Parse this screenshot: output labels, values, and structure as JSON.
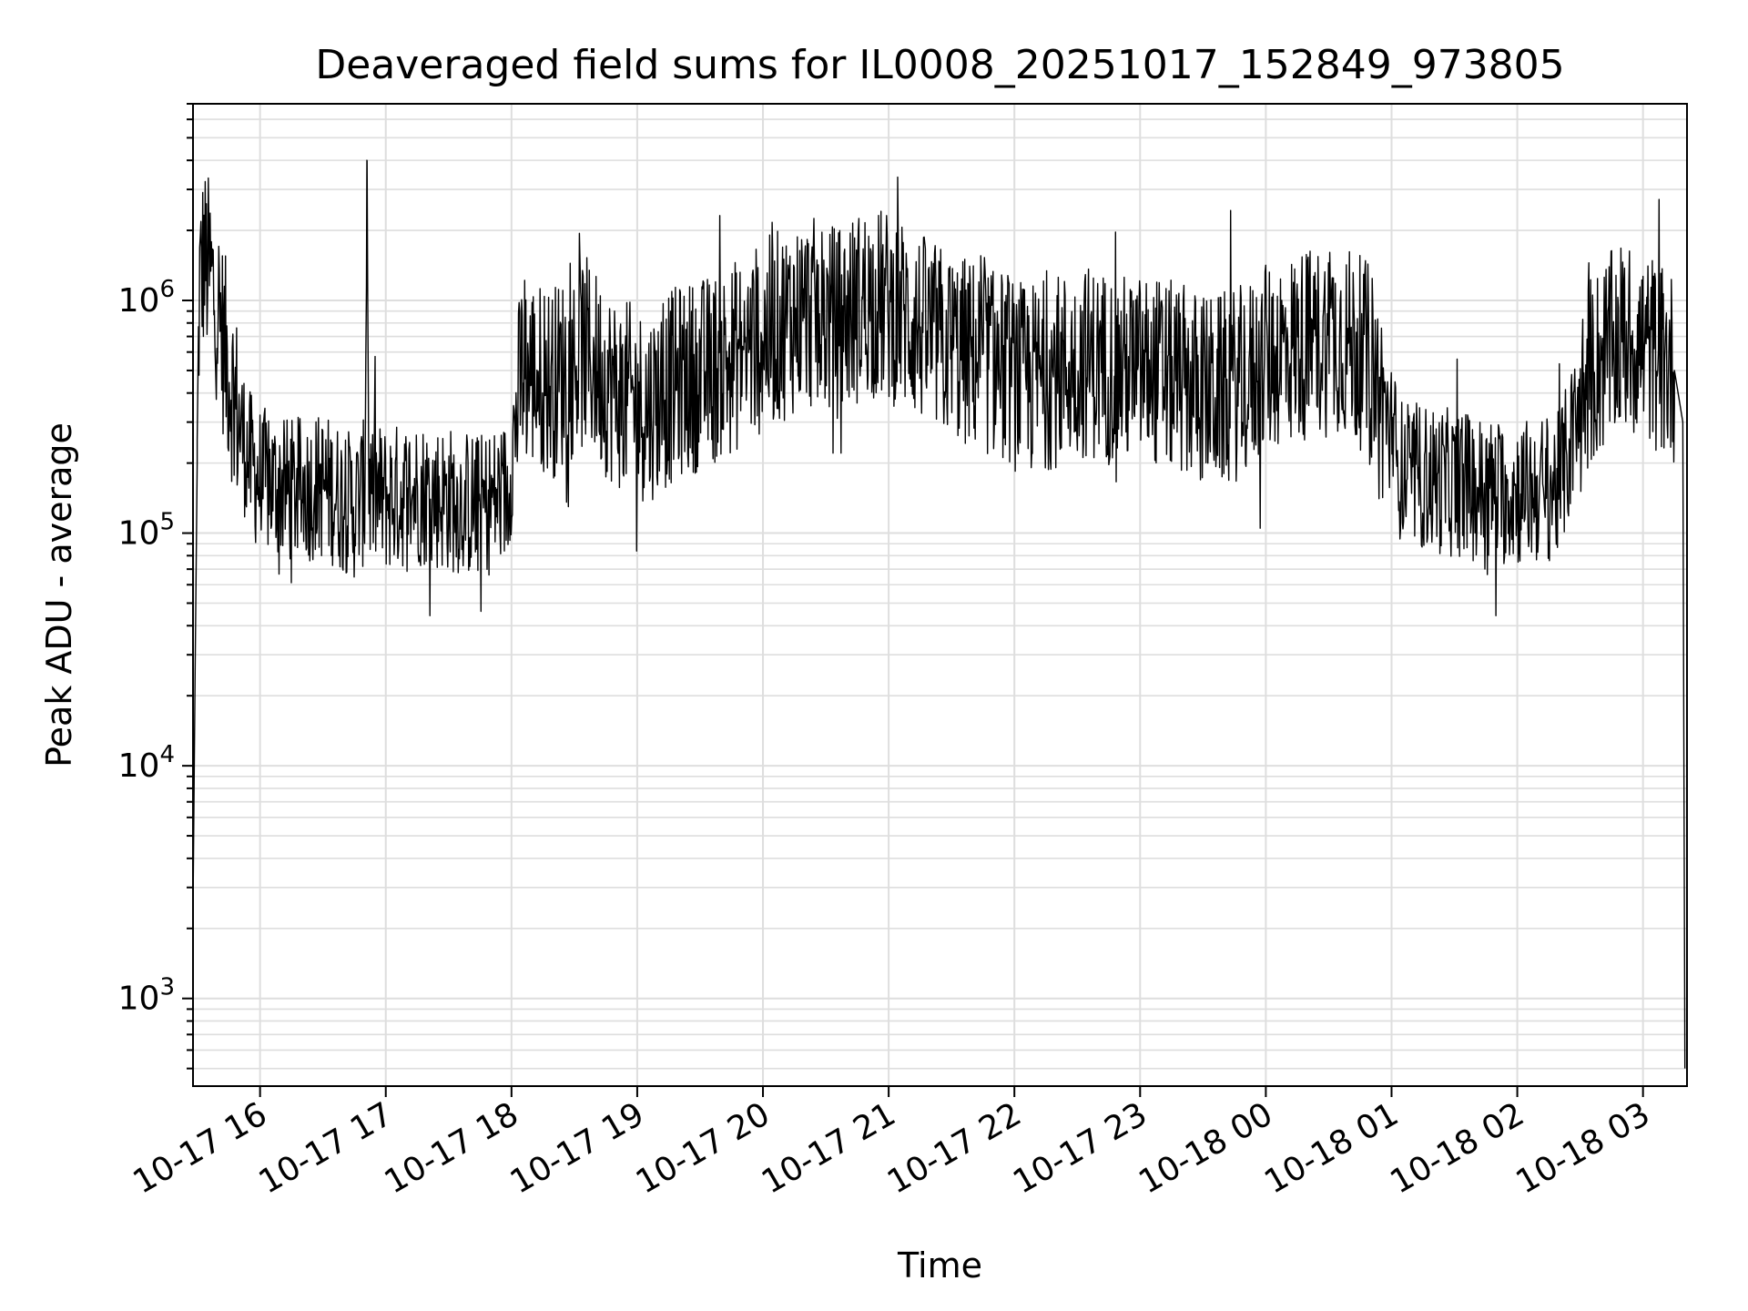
{
  "chart_data": {
    "type": "line",
    "title": "Deaveraged field sums for IL0008_20251017_152849_973805",
    "xlabel": "Time",
    "ylabel": "Peak ADU - average",
    "yscale": "log",
    "ylim": [
      420,
      7000000
    ],
    "xlim": [
      "2025-10-17 15:28",
      "2025-10-18 03:21"
    ],
    "grid": true,
    "line_color": "#000000",
    "x_ticks": [
      "10-17 16",
      "10-17 17",
      "10-17 18",
      "10-17 19",
      "10-17 20",
      "10-17 21",
      "10-17 22",
      "10-17 23",
      "10-18 00",
      "10-18 01",
      "10-18 02",
      "10-18 03"
    ],
    "y_ticks": [
      {
        "value": 1000,
        "base": "10",
        "exp": "3"
      },
      {
        "value": 10000,
        "base": "10",
        "exp": "4"
      },
      {
        "value": 100000,
        "base": "10",
        "exp": "5"
      },
      {
        "value": 1000000,
        "base": "10",
        "exp": "6"
      }
    ],
    "series": [
      {
        "x": [
          "2025-10-17 15:28",
          "2025-10-17 15:29",
          "2025-10-17 15:30",
          "2025-10-17 15:31",
          "2025-10-17 15:33",
          "2025-10-17 15:36",
          "2025-10-17 15:40",
          "2025-10-17 15:45",
          "2025-10-17 15:50",
          "2025-10-17 15:55",
          "2025-10-17 16:00",
          "2025-10-17 16:15",
          "2025-10-17 16:30",
          "2025-10-17 16:45",
          "2025-10-17 16:50",
          "2025-10-17 16:51",
          "2025-10-17 16:52",
          "2025-10-17 17:00",
          "2025-10-17 17:15",
          "2025-10-17 17:30",
          "2025-10-17 17:45",
          "2025-10-17 17:58",
          "2025-10-17 18:05",
          "2025-10-17 18:20",
          "2025-10-17 18:35",
          "2025-10-17 18:50",
          "2025-10-17 19:05",
          "2025-10-17 19:20",
          "2025-10-17 19:35",
          "2025-10-17 19:50",
          "2025-10-17 20:05",
          "2025-10-17 20:20",
          "2025-10-17 20:35",
          "2025-10-17 20:50",
          "2025-10-17 21:05",
          "2025-10-17 21:20",
          "2025-10-17 21:35",
          "2025-10-17 21:50",
          "2025-10-17 22:05",
          "2025-10-17 22:20",
          "2025-10-17 22:35",
          "2025-10-17 22:50",
          "2025-10-17 23:05",
          "2025-10-17 23:20",
          "2025-10-17 23:35",
          "2025-10-17 23:50",
          "2025-10-18 00:05",
          "2025-10-18 00:20",
          "2025-10-18 00:35",
          "2025-10-18 00:50",
          "2025-10-18 01:05",
          "2025-10-18 01:20",
          "2025-10-18 01:35",
          "2025-10-18 01:50",
          "2025-10-18 02:05",
          "2025-10-18 02:20",
          "2025-10-18 02:35",
          "2025-10-18 02:50",
          "2025-10-18 03:05",
          "2025-10-18 03:15",
          "2025-10-18 03:19",
          "2025-10-18 03:20"
        ],
        "y": [
          2400,
          25000,
          200000,
          1100000,
          1500000,
          1300000,
          900000,
          500000,
          300000,
          200000,
          170000,
          150000,
          160000,
          130000,
          150000,
          4000000,
          150000,
          140000,
          150000,
          140000,
          130000,
          150000,
          500000,
          450000,
          600000,
          400000,
          350000,
          450000,
          500000,
          600000,
          750000,
          900000,
          800000,
          1000000,
          900000,
          700000,
          600000,
          550000,
          450000,
          500000,
          550000,
          500000,
          500000,
          450000,
          400000,
          450000,
          600000,
          650000,
          700000,
          550000,
          180000,
          170000,
          160000,
          150000,
          150000,
          160000,
          500000,
          700000,
          600000,
          500000,
          300000,
          500
        ]
      }
    ]
  }
}
